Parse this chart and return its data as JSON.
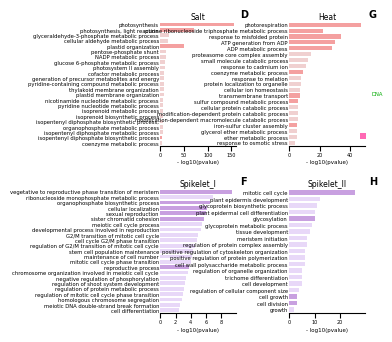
{
  "panels": [
    {
      "label": "D",
      "title": "Salt",
      "xlabel": "- log10(pvalue)",
      "xlim": [
        0,
        160
      ],
      "xticks": [
        0,
        50,
        100,
        150
      ],
      "items": [
        {
          "name": "photosynthesis",
          "value": 155,
          "colored": true
        },
        {
          "name": "photosynthesis, light reaction",
          "value": 70,
          "colored": true
        },
        {
          "name": "glyceraldehyde-3-phosphate metabolic process",
          "value": 18,
          "colored": false
        },
        {
          "name": "cellular aldehyde metabolic process",
          "value": 16,
          "colored": false
        },
        {
          "name": "plastid organization",
          "value": 50,
          "colored": true
        },
        {
          "name": "pentose-phosphate shunt",
          "value": 12,
          "colored": false
        },
        {
          "name": "NADP metabolic process",
          "value": 11,
          "colored": false
        },
        {
          "name": "glucose 6-phosphate metabolic process",
          "value": 10,
          "colored": false
        },
        {
          "name": "photosystem II assembly",
          "value": 9,
          "colored": false
        },
        {
          "name": "cofactor metabolic process",
          "value": 8,
          "colored": false
        },
        {
          "name": "generation of precursor metabolites and energy",
          "value": 8,
          "colored": false
        },
        {
          "name": "pyridine-containing compound metabolic process",
          "value": 7,
          "colored": false
        },
        {
          "name": "thylakoid membrane organization",
          "value": 7,
          "colored": false
        },
        {
          "name": "plastid membrane organization",
          "value": 7,
          "colored": false
        },
        {
          "name": "nicotinamide nucleotide metabolic process",
          "value": 6,
          "colored": false
        },
        {
          "name": "pyridine nucleotide metabolic process",
          "value": 6,
          "colored": false
        },
        {
          "name": "isoprenoid metabolic process",
          "value": 5,
          "colored": false
        },
        {
          "name": "isoprenoid biosynthetic process",
          "value": 5,
          "colored": false
        },
        {
          "name": "isopentenyl diphosphate biosynthetic process,",
          "value": 5,
          "colored": false
        },
        {
          "name": "organophosphate metabolic process",
          "value": 5,
          "colored": false
        },
        {
          "name": "isopentenyl diphosphate metabolic process",
          "value": 5,
          "colored": false
        },
        {
          "name": "isopentenyl diphosphate biosynthetic process",
          "value": 4,
          "colored": true
        },
        {
          "name": "coenzyme metabolic process",
          "value": 4,
          "colored": false
        }
      ],
      "bar_color_active": "#f4a0a0",
      "bar_color_inactive": "#f0d0d0"
    },
    {
      "label": "G",
      "title": "Heat",
      "xlabel": "- log10(pvalue)",
      "xlim": [
        0,
        50
      ],
      "xticks": [
        0,
        20,
        40
      ],
      "items": [
        {
          "name": "photorespiration",
          "value": 47,
          "colored": true
        },
        {
          "name": "purine ribonucleoside triphosphate metabolic process",
          "value": 22,
          "colored": true
        },
        {
          "name": "response to misfolded protein",
          "value": 34,
          "colored": true
        },
        {
          "name": "ATP generation from ADP",
          "value": 30,
          "colored": true
        },
        {
          "name": "ADP metabolic process",
          "value": 28,
          "colored": true
        },
        {
          "name": "proteasome core complex assembly",
          "value": 14,
          "colored": false
        },
        {
          "name": "small molecule catabolic process",
          "value": 12,
          "colored": false
        },
        {
          "name": "response to cadmium ion",
          "value": 11,
          "colored": false
        },
        {
          "name": "coenzyme metabolic process",
          "value": 9,
          "colored": true
        },
        {
          "name": "response to melation",
          "value": 8,
          "colored": false
        },
        {
          "name": "protein localization to organelle",
          "value": 8,
          "colored": false
        },
        {
          "name": "cellular ion homeostasis",
          "value": 7,
          "colored": false
        },
        {
          "name": "transmembrane transport",
          "value": 7,
          "colored": true
        },
        {
          "name": "sulfur compound metabolic process",
          "value": 6,
          "colored": true
        },
        {
          "name": "cellular protein catabolic process",
          "value": 6,
          "colored": false
        },
        {
          "name": "modification-dependent protein catabolic process",
          "value": 6,
          "colored": false
        },
        {
          "name": "modification-dependent macromolecule catabolic process",
          "value": 6,
          "colored": false
        },
        {
          "name": "iron-sulfur cluster assembly",
          "value": 5,
          "colored": true
        },
        {
          "name": "glycerol ether metabolic process",
          "value": 5,
          "colored": false
        },
        {
          "name": "ether metabolic process",
          "value": 5,
          "colored": false
        },
        {
          "name": "response to osmotic stress",
          "value": 4,
          "colored": false
        }
      ],
      "bar_color_active": "#f4a0a0",
      "bar_color_inactive": "#f0d0d0"
    },
    {
      "label": "F",
      "title": "Spikelet_I",
      "xlabel": "- log10(pvalue)",
      "xlim": [
        0,
        10
      ],
      "xticks": [
        0,
        2,
        4,
        6,
        8
      ],
      "items": [
        {
          "name": "vegetative to reproductive phase transition of meristem",
          "value": 9.5,
          "colored": true
        },
        {
          "name": "ribonucleoside monophosphate metabolic process",
          "value": 7.0,
          "colored": false
        },
        {
          "name": "organophosphate biosynthetic process",
          "value": 6.5,
          "colored": true
        },
        {
          "name": "cellular localization",
          "value": 6.2,
          "colored": true
        },
        {
          "name": "sexual reproduction",
          "value": 6.0,
          "colored": true
        },
        {
          "name": "sister chromatid cohesion",
          "value": 5.8,
          "colored": true
        },
        {
          "name": "meiotic cell cycle process",
          "value": 5.5,
          "colored": false
        },
        {
          "name": "developmental process involved in reproduction",
          "value": 5.3,
          "colored": false
        },
        {
          "name": "G2/M transition of mitotic cell cycle",
          "value": 5.0,
          "colored": false
        },
        {
          "name": "cell cycle G2/M phase transition",
          "value": 4.8,
          "colored": false
        },
        {
          "name": "regulation of G2/M transition of mitotic cell cycle",
          "value": 4.5,
          "colored": false
        },
        {
          "name": "stem cell population maintenance",
          "value": 4.3,
          "colored": false
        },
        {
          "name": "maintenance of cell number",
          "value": 4.2,
          "colored": false
        },
        {
          "name": "mitotic cell cycle phase transition",
          "value": 4.0,
          "colored": false
        },
        {
          "name": "reproductive process",
          "value": 3.8,
          "colored": true
        },
        {
          "name": "chromosome organization involved in meiotic cell cycle",
          "value": 3.6,
          "colored": false
        },
        {
          "name": "negative regulation of phosphorylation",
          "value": 3.4,
          "colored": false
        },
        {
          "name": "regulation of shoot system development",
          "value": 3.3,
          "colored": false
        },
        {
          "name": "regulation of protein metabolic process",
          "value": 3.1,
          "colored": false
        },
        {
          "name": "regulation of mitotic cell cycle phase transition",
          "value": 3.0,
          "colored": false
        },
        {
          "name": "homologous chromosome segregation",
          "value": 2.8,
          "colored": false
        },
        {
          "name": "meiotic DNA double-strand break formation",
          "value": 2.6,
          "colored": false
        },
        {
          "name": "cell differentiation",
          "value": 2.4,
          "colored": false
        }
      ],
      "bar_color_active": "#c8a0e0",
      "bar_color_inactive": "#e8d8f8"
    },
    {
      "label": "H",
      "title": "Spikelet_II",
      "xlabel": "- log10(pvalue)",
      "xlim": [
        0,
        30
      ],
      "xticks": [
        0,
        10,
        20
      ],
      "items": [
        {
          "name": "mitotic cell cycle",
          "value": 26,
          "colored": true
        },
        {
          "name": "plant epidermis development",
          "value": 12,
          "colored": false
        },
        {
          "name": "glycoprotein biosynthetic process",
          "value": 11,
          "colored": false
        },
        {
          "name": "plant epidermal cell differentiation",
          "value": 10,
          "colored": false
        },
        {
          "name": "glycosylation",
          "value": 10,
          "colored": true
        },
        {
          "name": "glycoprotein metabolic process",
          "value": 9,
          "colored": false
        },
        {
          "name": "tissue development",
          "value": 8,
          "colored": false
        },
        {
          "name": "meristem initiation",
          "value": 7,
          "colored": false
        },
        {
          "name": "regulation of protein complex assembly",
          "value": 7,
          "colored": false
        },
        {
          "name": "positive regulation of cytoskeleton organization",
          "value": 6,
          "colored": false
        },
        {
          "name": "positive regulation of protein polymerization",
          "value": 6,
          "colored": false
        },
        {
          "name": "cell wall polysaccharide metabolic process",
          "value": 6,
          "colored": false
        },
        {
          "name": "regulation of organelle organization",
          "value": 5,
          "colored": false
        },
        {
          "name": "trichome differentiation",
          "value": 5,
          "colored": false
        },
        {
          "name": "cell development",
          "value": 5,
          "colored": false
        },
        {
          "name": "regulation of cellular component size",
          "value": 4,
          "colored": false
        },
        {
          "name": "cell growth",
          "value": 3,
          "colored": true
        },
        {
          "name": "cell division",
          "value": 3,
          "colored": true
        },
        {
          "name": "growth",
          "value": 2,
          "colored": false
        }
      ],
      "bar_color_active": "#c8a0e0",
      "bar_color_inactive": "#e8d8f8"
    }
  ],
  "background_color": "#ffffff",
  "label_fontsize": 3.8,
  "bar_height": 0.7,
  "tick_fontsize": 3.5,
  "axis_label_fontsize": 4.0,
  "title_fontsize": 5.5,
  "panel_label_fontsize": 7,
  "dna_color": "#00aa00",
  "dot_color": "#ff69b4"
}
